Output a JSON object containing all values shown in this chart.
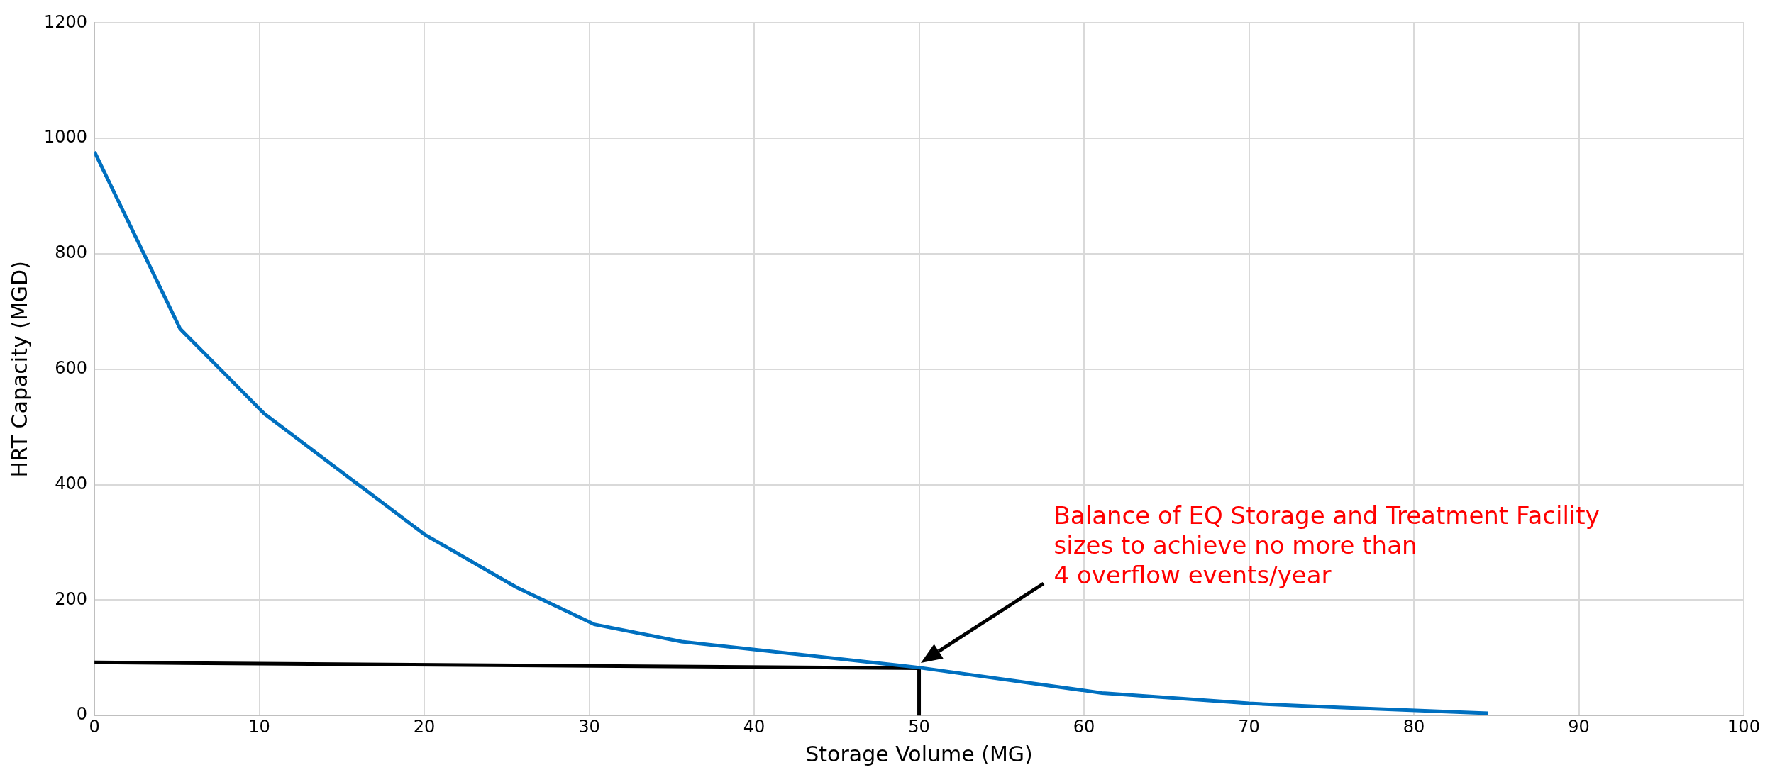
{
  "chart_data": {
    "type": "line",
    "xlabel": "Storage Volume (MG)",
    "ylabel": "HRT Capacity (MGD)",
    "series": [
      {
        "color": "#0070c0",
        "x": [
          0,
          5.2,
          10.3,
          15.4,
          20,
          25.6,
          30.3,
          35.6,
          50,
          61.1,
          70,
          75.4,
          84.5
        ],
        "values": [
          977,
          670,
          523,
          413,
          314,
          222,
          158,
          128,
          83,
          39,
          21,
          14,
          4
        ]
      },
      {
        "color": "#000000",
        "x": [
          0,
          50,
          50
        ],
        "values": [
          92,
          82,
          0
        ]
      }
    ],
    "xlim": [
      0,
      100
    ],
    "xticks": [
      0,
      10,
      20,
      30,
      40,
      50,
      60,
      70,
      80,
      90,
      100
    ],
    "ylim": [
      0,
      1200
    ],
    "yticks": [
      0,
      200,
      400,
      600,
      800,
      1000,
      1200
    ],
    "grid": true,
    "marker": "none",
    "line_style": "solid",
    "annotations": [
      "Balance of EQ Storage and Treatment Facility\nsizes to achieve no more than\n4 overflow events/year"
    ]
  }
}
